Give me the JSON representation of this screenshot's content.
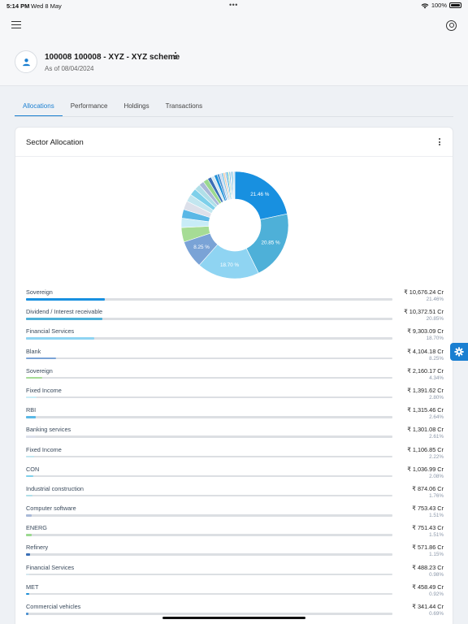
{
  "status_bar": {
    "time": "5:14 PM",
    "date": "Wed 8 May",
    "dots": "•••",
    "battery": "100%"
  },
  "header": {
    "title": "100008 100008 - XYZ - XYZ scheme",
    "as_of": "As of 08/04/2024"
  },
  "tabs": [
    {
      "label": "Allocations",
      "active": true
    },
    {
      "label": "Performance"
    },
    {
      "label": "Holdings"
    },
    {
      "label": "Transactions"
    }
  ],
  "card": {
    "title": "Sector Allocation"
  },
  "icons": [
    "menu-icon",
    "user-icon",
    "avatar-user-icon",
    "kebab-icon",
    "settings-gear-icon"
  ],
  "colors": {
    "accent": "#1a7fd1",
    "track": "#dcdfe3"
  },
  "chart_data": {
    "type": "pie",
    "donut": true,
    "slice_labels": [
      "21.46 %",
      "20.85 %",
      "18.70 %",
      "8.25 %"
    ],
    "extra_slices": [
      {
        "value": 0.6,
        "color": "#c7d7ef"
      },
      {
        "value": 0.55,
        "color": "#7cc5ea"
      },
      {
        "value": 0.5,
        "color": "#f2c8a0"
      },
      {
        "value": 0.45,
        "color": "#b9cbe6"
      },
      {
        "value": 0.45,
        "color": "#2aa9d8"
      },
      {
        "value": 0.4,
        "color": "#cfe7b8"
      },
      {
        "value": 0.4,
        "color": "#6fb7e8"
      },
      {
        "value": 0.35,
        "color": "#d2dae6"
      },
      {
        "value": 0.35,
        "color": "#17a0d8"
      },
      {
        "value": 0.3,
        "color": "#d9cfe6"
      },
      {
        "value": 0.3,
        "color": "#a9dcf0"
      }
    ],
    "slices": [
      {
        "label": "Sovereign",
        "amount": "₹ 10,676.24 Cr",
        "pct": "21.46%",
        "value": 21.46,
        "color": "#1890e0"
      },
      {
        "label": "Dividend / Interest receivable",
        "amount": "₹ 10,372.51 Cr",
        "pct": "20.85%",
        "value": 20.85,
        "color": "#4eb0d8"
      },
      {
        "label": "Financial Services",
        "amount": "₹ 9,303.09 Cr",
        "pct": "18.70%",
        "value": 18.7,
        "color": "#8fd4f2"
      },
      {
        "label": "Blank",
        "amount": "₹ 4,104.18 Cr",
        "pct": "8.25%",
        "value": 8.25,
        "color": "#7aa3d6"
      },
      {
        "label": "Sovereign",
        "amount": "₹ 2,160.17 Cr",
        "pct": "4.34%",
        "value": 4.34,
        "color": "#a6dc95"
      },
      {
        "label": "Fixed Income",
        "amount": "₹ 1,391.62 Cr",
        "pct": "2.80%",
        "value": 2.8,
        "color": "#c8ecf7"
      },
      {
        "label": "RBI",
        "amount": "₹ 1,315.46 Cr",
        "pct": "2.64%",
        "value": 2.64,
        "color": "#5ab8e6"
      },
      {
        "label": "Banking services",
        "amount": "₹ 1,301.08 Cr",
        "pct": "2.61%",
        "value": 2.61,
        "color": "#dce0ea"
      },
      {
        "label": "Fixed Income",
        "amount": "₹ 1,106.85 Cr",
        "pct": "2.22%",
        "value": 2.22,
        "color": "#c2e6ef"
      },
      {
        "label": "CON",
        "amount": "₹ 1,036.99 Cr",
        "pct": "2.08%",
        "value": 2.08,
        "color": "#7ed0ea"
      },
      {
        "label": "Industrial construction",
        "amount": "₹ 874.06 Cr",
        "pct": "1.76%",
        "value": 1.76,
        "color": "#b0dfe8"
      },
      {
        "label": "Computer software",
        "amount": "₹ 753.43 Cr",
        "pct": "1.51%",
        "value": 1.51,
        "color": "#a9b9d8"
      },
      {
        "label": "ENERG",
        "amount": "₹ 751.43 Cr",
        "pct": "1.51%",
        "value": 1.51,
        "color": "#9bd98f"
      },
      {
        "label": "Refinery",
        "amount": "₹ 571.86 Cr",
        "pct": "1.15%",
        "value": 1.15,
        "color": "#3a6fb6"
      },
      {
        "label": "Financial Services",
        "amount": "₹ 488.23 Cr",
        "pct": "0.98%",
        "value": 0.98,
        "color": "#d4e8f0"
      },
      {
        "label": "MET",
        "amount": "₹ 458.49 Cr",
        "pct": "0.92%",
        "value": 0.92,
        "color": "#1b8fd8"
      },
      {
        "label": "Commercial vehicles",
        "amount": "₹ 341.44 Cr",
        "pct": "0.69%",
        "value": 0.69,
        "color": "#4a90d0"
      }
    ]
  }
}
